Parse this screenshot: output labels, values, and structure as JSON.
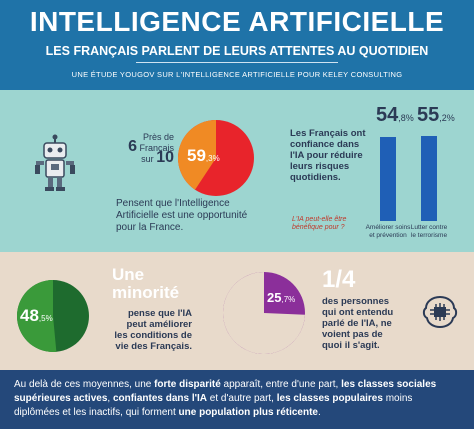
{
  "header": {
    "title": "INTELLIGENCE ARTIFICIELLE",
    "subtitle": "LES FRANÇAIS PARLENT DE LEURS ATTENTES AU QUOTIDIEN",
    "source": "UNE ÉTUDE YOUGOV SUR L'INTELLIGENCE ARTIFICIELLE POUR KELEY CONSULTING"
  },
  "colors": {
    "header_blue": "#1f73a8",
    "teal": "#9dd5d0",
    "beige": "#e8dacb",
    "footer": "#24487a",
    "red": "#e8242b",
    "orange": "#f08a24",
    "green_dark": "#1e6b2e",
    "green_light": "#3a9a3a",
    "purple": "#8b2f9a",
    "bar_blue": "#1f5fb6"
  },
  "section1": {
    "icon": "robot-icon",
    "ratio": {
      "pres_de": "Près de",
      "six": "6",
      "francais": "Français",
      "sur": "sur",
      "dix": "10"
    },
    "pie": {
      "value": 59.3,
      "main": "59",
      "decimal": ",3",
      "unit": "%"
    },
    "caption": [
      "Pensent que l'Intelligence",
      "Artificielle est une opportunité",
      "pour la France."
    ]
  },
  "section2": {
    "text": [
      "Les Français ont",
      "confiance dans",
      "l'IA pour réduire",
      "leurs risques",
      "quotidiens."
    ],
    "note": [
      "L'IA peut-elle être",
      "bénéfique pour ?"
    ],
    "chart_data": {
      "type": "bar",
      "categories": [
        "Améliorer soins et prévention",
        "Lutter contre le terrorisme"
      ],
      "values": [
        54.8,
        55.2
      ],
      "ylim": [
        0,
        60
      ],
      "labels": [
        {
          "main": "54",
          "decimal": ",8%",
          "lines": [
            "Améliorer soins",
            "et prévention"
          ]
        },
        {
          "main": "55",
          "decimal": ",2%",
          "lines": [
            "Lutter contre",
            "le terrorisme"
          ]
        }
      ]
    }
  },
  "section3": {
    "headline": [
      "Une",
      "minorité"
    ],
    "pie": {
      "value": 48.5,
      "main": "48",
      "decimal": ",5",
      "unit": "%"
    },
    "text": [
      "pense que l'IA",
      "peut améliorer",
      "les conditions de",
      "vie des Français."
    ]
  },
  "section4": {
    "fraction": "1/4",
    "pie": {
      "value": 25.7,
      "main": "25",
      "decimal": ",7",
      "unit": "%"
    },
    "text": [
      "des personnes",
      "qui ont entendu",
      "parlé de l'IA, ne",
      "voient pas de",
      "quoi il s'agit."
    ],
    "icon": "brain-chip-icon"
  },
  "footer": {
    "p1": "Au delà de ces moyennes, une ",
    "b1": "forte disparité",
    "p2": " apparaît, entre d'une part, ",
    "b2": "les classes sociales supérieures actives",
    "p3": ", ",
    "b3": "confiantes dans l'IA",
    "p4": " et d'autre part, ",
    "b4": "les classes populaires",
    "p5": " moins diplômées et les inactifs, qui forment ",
    "b5": "une population plus réticente",
    "p6": "."
  }
}
